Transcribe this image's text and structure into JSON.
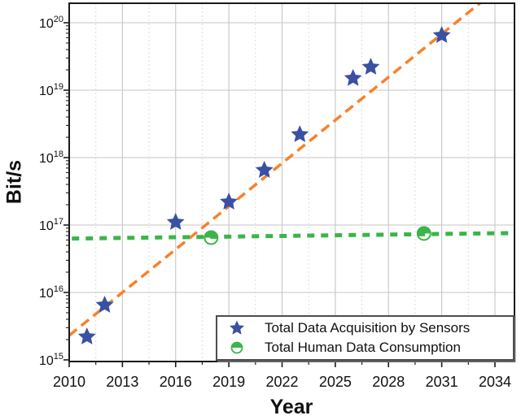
{
  "chart_data": {
    "type": "scatter",
    "title": "",
    "xlabel": "Year",
    "ylabel": "Bit/s",
    "x_ticks": [
      2010,
      2013,
      2016,
      2019,
      2022,
      2025,
      2028,
      2031,
      2034
    ],
    "y_tick_exponents": [
      15,
      16,
      17,
      18,
      19,
      20
    ],
    "xlim": [
      2010,
      2035.1
    ],
    "ylim": [
      1000000000000000.0,
      2e+20
    ],
    "y_scale": "log",
    "grid": true,
    "legend_position": "bottom-right",
    "series": [
      {
        "name": "Total Data Acquisition by Sensors",
        "marker": "star",
        "color": "#3a50a2",
        "points": [
          [
            2011,
            2200000000000000.0
          ],
          [
            2012,
            6500000000000000.0
          ],
          [
            2016,
            1.1e+17
          ],
          [
            2019,
            2.2e+17
          ],
          [
            2021,
            6.5e+17
          ],
          [
            2023,
            2.2e+18
          ],
          [
            2026,
            1.5e+19
          ],
          [
            2027,
            2.2e+19
          ],
          [
            2031,
            6.5e+19
          ]
        ]
      },
      {
        "name": "Total Human Data Consumption",
        "marker": "half-filled-circle",
        "color": "#3cb44a",
        "points": [
          [
            2018,
            6.5e+16
          ],
          [
            2030,
            7.5e+16
          ]
        ]
      }
    ],
    "trend_lines": [
      {
        "name": "sensor-growth-trend",
        "style": "dashed",
        "color": "#f8812a",
        "points": [
          [
            2010,
            2300000000000000.0
          ],
          [
            2033.2,
            2e+20
          ]
        ]
      },
      {
        "name": "human-consumption-trend",
        "style": "dotted",
        "color": "#3cb44a",
        "points": [
          [
            2010.15,
            6.3e+16
          ],
          [
            2035.0,
            7.6e+16
          ]
        ]
      }
    ]
  },
  "colors": {
    "frame": "#1a1a1a",
    "major_grid": "#c6c6c6",
    "minor_grid": "#dcdcdc",
    "text": "#111111"
  }
}
